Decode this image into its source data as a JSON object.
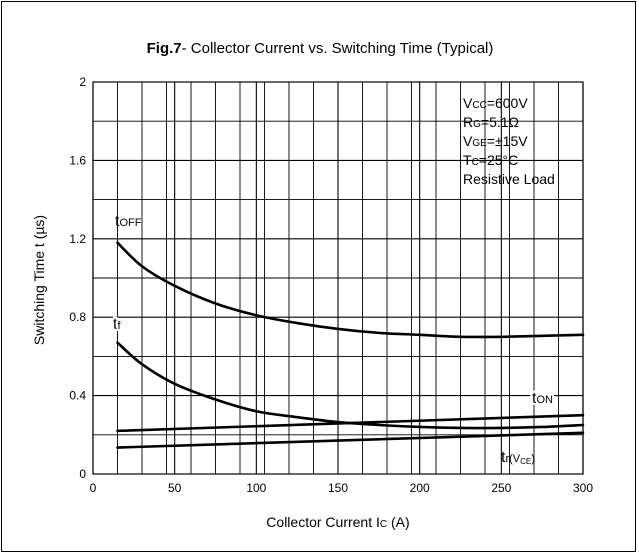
{
  "chart_data": {
    "type": "line",
    "title_bold": "Fig.7",
    "title_rest": "- Collector Current vs. Switching Time (Typical)",
    "xlabel_main": "Collector Current I",
    "xlabel_sub": "C",
    "xlabel_unit": "  (A)",
    "ylabel": "Switching Time t  (µs)",
    "xlim": [
      0,
      300
    ],
    "ylim": [
      0,
      2
    ],
    "x_ticks": [
      0,
      50,
      100,
      150,
      200,
      250,
      300
    ],
    "x_tick_labels": [
      "0",
      "50",
      "100",
      "150",
      "200",
      "250",
      "300"
    ],
    "y_ticks": [
      0,
      0.4,
      0.8,
      1.2,
      1.6,
      2
    ],
    "y_tick_labels": [
      "0",
      "0.4",
      "0.8",
      "1.2",
      "1.6",
      "2"
    ],
    "x_minor_grid": [
      15,
      30,
      45,
      60,
      75,
      90,
      105,
      120,
      135,
      150,
      165,
      180,
      195,
      210,
      225,
      240,
      255,
      270,
      285
    ],
    "y_minor_grid": [
      0.2,
      0.6,
      1.0,
      1.4,
      1.8
    ],
    "grid": true,
    "conditions": [
      {
        "a": "V",
        "b": "CC",
        "c": "=600V"
      },
      {
        "a": "R",
        "b": "G",
        "c": "=5.1Ω"
      },
      {
        "a": "V",
        "b": "GE",
        "c": "=±15V"
      },
      {
        "a": "T",
        "b": "C",
        "c": "=25°C"
      },
      {
        "a": "Resistive Load",
        "b": "",
        "c": ""
      }
    ],
    "series": [
      {
        "name": "t_OFF",
        "x": [
          15,
          30,
          50,
          75,
          100,
          125,
          150,
          175,
          200,
          225,
          250,
          275,
          300
        ],
        "y": [
          1.18,
          1.06,
          0.96,
          0.87,
          0.81,
          0.77,
          0.74,
          0.72,
          0.71,
          0.7,
          0.7,
          0.705,
          0.71
        ]
      },
      {
        "name": "t_f",
        "x": [
          15,
          30,
          50,
          75,
          100,
          125,
          150,
          175,
          200,
          225,
          250,
          275,
          300
        ],
        "y": [
          0.67,
          0.56,
          0.46,
          0.38,
          0.32,
          0.29,
          0.265,
          0.25,
          0.24,
          0.235,
          0.235,
          0.24,
          0.25
        ]
      },
      {
        "name": "t_ON",
        "x": [
          15,
          300
        ],
        "y": [
          0.22,
          0.3
        ]
      },
      {
        "name": "t_r(V_CE)",
        "x": [
          15,
          300
        ],
        "y": [
          0.135,
          0.21
        ]
      }
    ],
    "curve_labels": [
      {
        "main": "t",
        "sub": "OFF",
        "sub2": ""
      },
      {
        "main": "t",
        "sub": "f",
        "sub2": ""
      },
      {
        "main": "t",
        "sub": "ON",
        "sub2": ""
      },
      {
        "main": "t",
        "sub": "r(V",
        "sub2": "CE",
        "tail": ")"
      }
    ]
  }
}
